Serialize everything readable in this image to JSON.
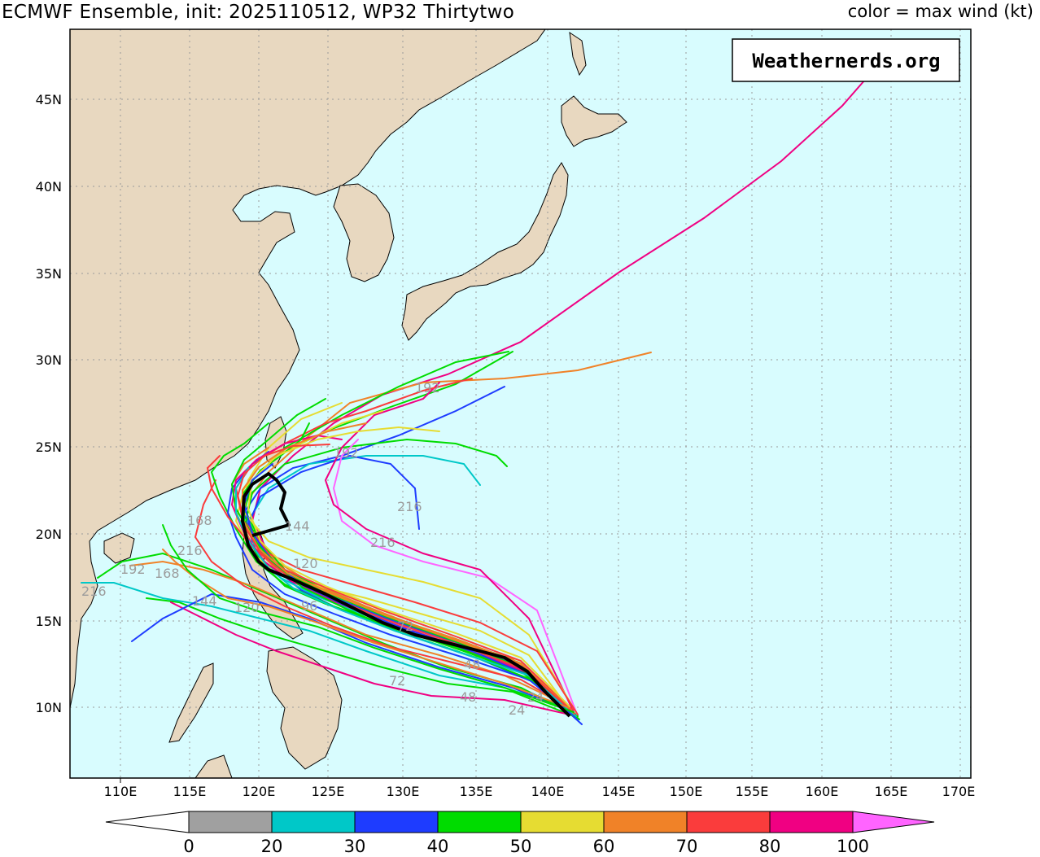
{
  "header": {
    "title": "ECMWF Ensemble, init: 2025110512, WP32 Thirtytwo",
    "legend_title": "color = max wind (kt)"
  },
  "watermark": "Weathernerds.org",
  "axes": {
    "lon_labels": [
      "110E",
      "115E",
      "120E",
      "125E",
      "130E",
      "135E",
      "140E",
      "145E",
      "150E",
      "155E",
      "160E",
      "165E",
      "170E"
    ],
    "lat_labels": [
      "10N",
      "15N",
      "20N",
      "25N",
      "30N",
      "35N",
      "40N",
      "45N"
    ]
  },
  "colorbar": {
    "ticks": [
      "0",
      "20",
      "30",
      "40",
      "50",
      "60",
      "70",
      "80",
      "100"
    ],
    "colors": [
      "#ffffff",
      "#a0a0a0",
      "#00c8c8",
      "#1e3cff",
      "#00dc00",
      "#e6dc32",
      "#f08228",
      "#fa3c3c",
      "#f00082",
      "#ff64ff"
    ]
  },
  "colors": {
    "ocean": "#d8fcfe",
    "land": "#e8d8c0",
    "coast": "#000000",
    "grid": "#9a9a9a",
    "mean_track": "#000000"
  },
  "track_labels": [
    "216",
    "192",
    "168",
    "144",
    "120",
    "96",
    "72",
    "48",
    "24",
    "216",
    "192",
    "144",
    "120",
    "168",
    "216",
    "192",
    "48",
    "72",
    "24",
    "216"
  ]
}
